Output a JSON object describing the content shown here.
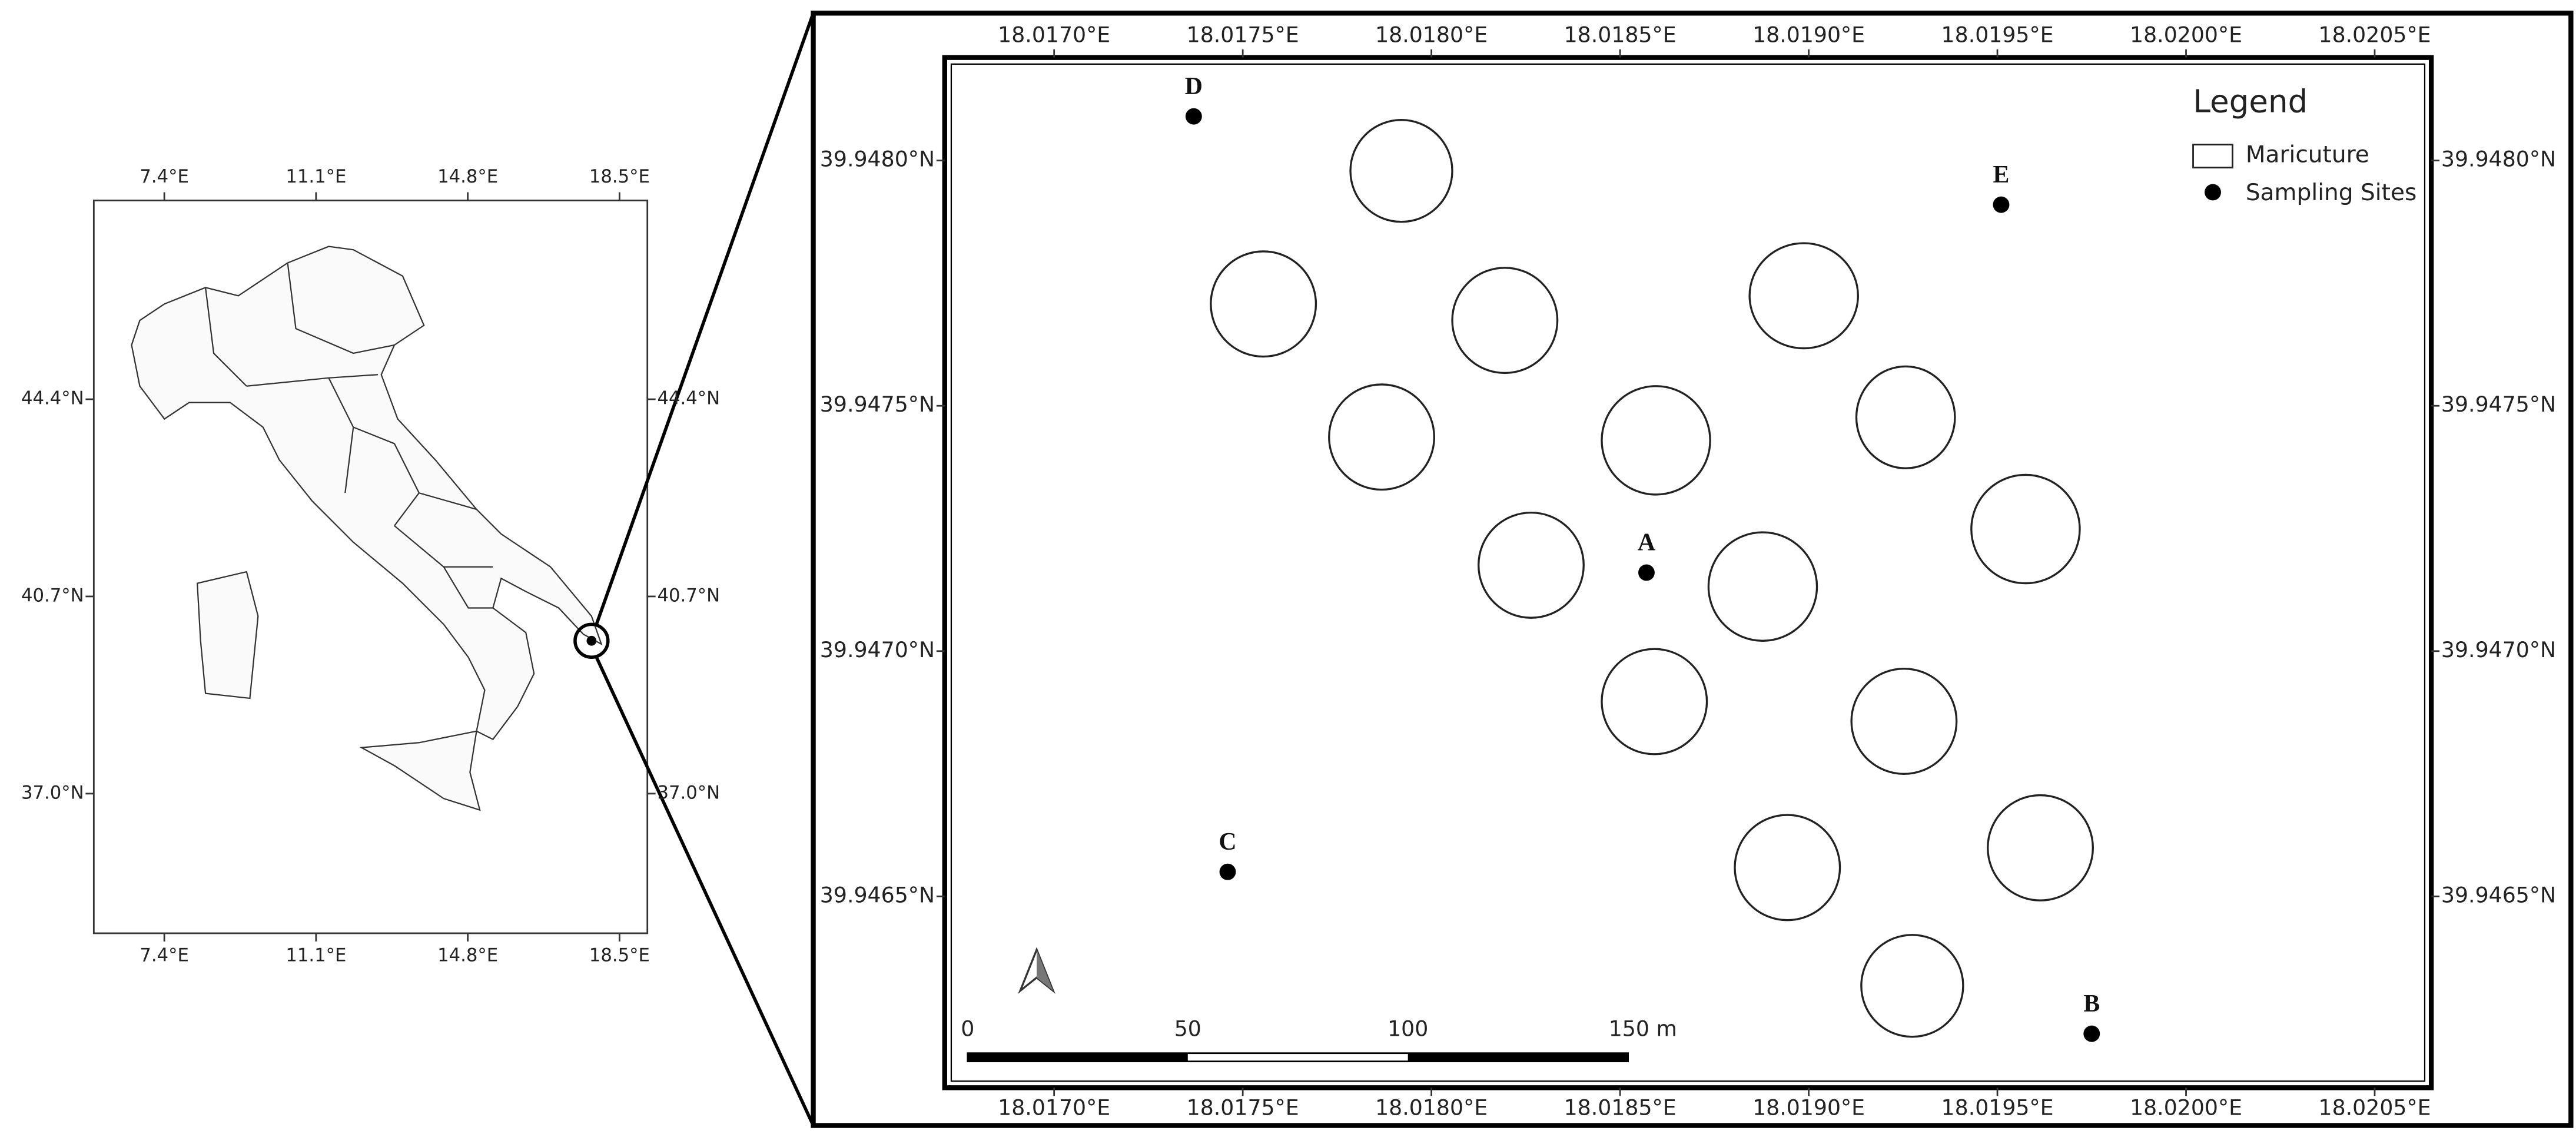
{
  "left_map": {
    "lon_ticks": [
      {
        "value": 7.4,
        "label": "7.4°E"
      },
      {
        "value": 11.1,
        "label": "11.1°E"
      },
      {
        "value": 14.8,
        "label": "14.8°E"
      },
      {
        "value": 18.5,
        "label": "18.5°E"
      }
    ],
    "lat_ticks": [
      {
        "value": 44.4,
        "label": "44.4°N"
      },
      {
        "value": 40.7,
        "label": "40.7°N"
      },
      {
        "value": 37.0,
        "label": "37.0°N"
      }
    ],
    "xlim": [
      5.68,
      19.18
    ],
    "ylim": [
      34.38,
      48.13
    ]
  },
  "right_map": {
    "lon_ticks": [
      {
        "value": 18.017,
        "label": "18.0170°E"
      },
      {
        "value": 18.0175,
        "label": "18.0175°E"
      },
      {
        "value": 18.018,
        "label": "18.0180°E"
      },
      {
        "value": 18.0185,
        "label": "18.0185°E"
      },
      {
        "value": 18.019,
        "label": "18.0190°E"
      },
      {
        "value": 18.0195,
        "label": "18.0195°E"
      },
      {
        "value": 18.02,
        "label": "18.0200°E"
      },
      {
        "value": 18.0205,
        "label": "18.0205°E"
      }
    ],
    "lat_ticks": [
      {
        "value": 39.948,
        "label": "39.9480°N"
      },
      {
        "value": 39.9475,
        "label": "39.9475°N"
      },
      {
        "value": 39.947,
        "label": "39.9470°N"
      },
      {
        "value": 39.9465,
        "label": "39.9465°N"
      }
    ],
    "xlim": [
      18.01671,
      18.02065
    ],
    "ylim": [
      39.94611,
      39.94821
    ],
    "sites": [
      {
        "label": "A",
        "lon": 18.01857,
        "lat": 39.94716
      },
      {
        "label": "B",
        "lon": 18.01975,
        "lat": 39.94622
      },
      {
        "label": "C",
        "lon": 18.01746,
        "lat": 39.94655
      },
      {
        "label": "D",
        "lon": 18.01737,
        "lat": 39.94809
      },
      {
        "label": "E",
        "lon": 18.01951,
        "lat": 39.94791
      }
    ],
    "legend": {
      "title": "Legend",
      "items": [
        "Maricuture",
        "Sampling Sites"
      ]
    },
    "scale_bar": [
      "0",
      "50",
      "100",
      "150 m"
    ]
  }
}
